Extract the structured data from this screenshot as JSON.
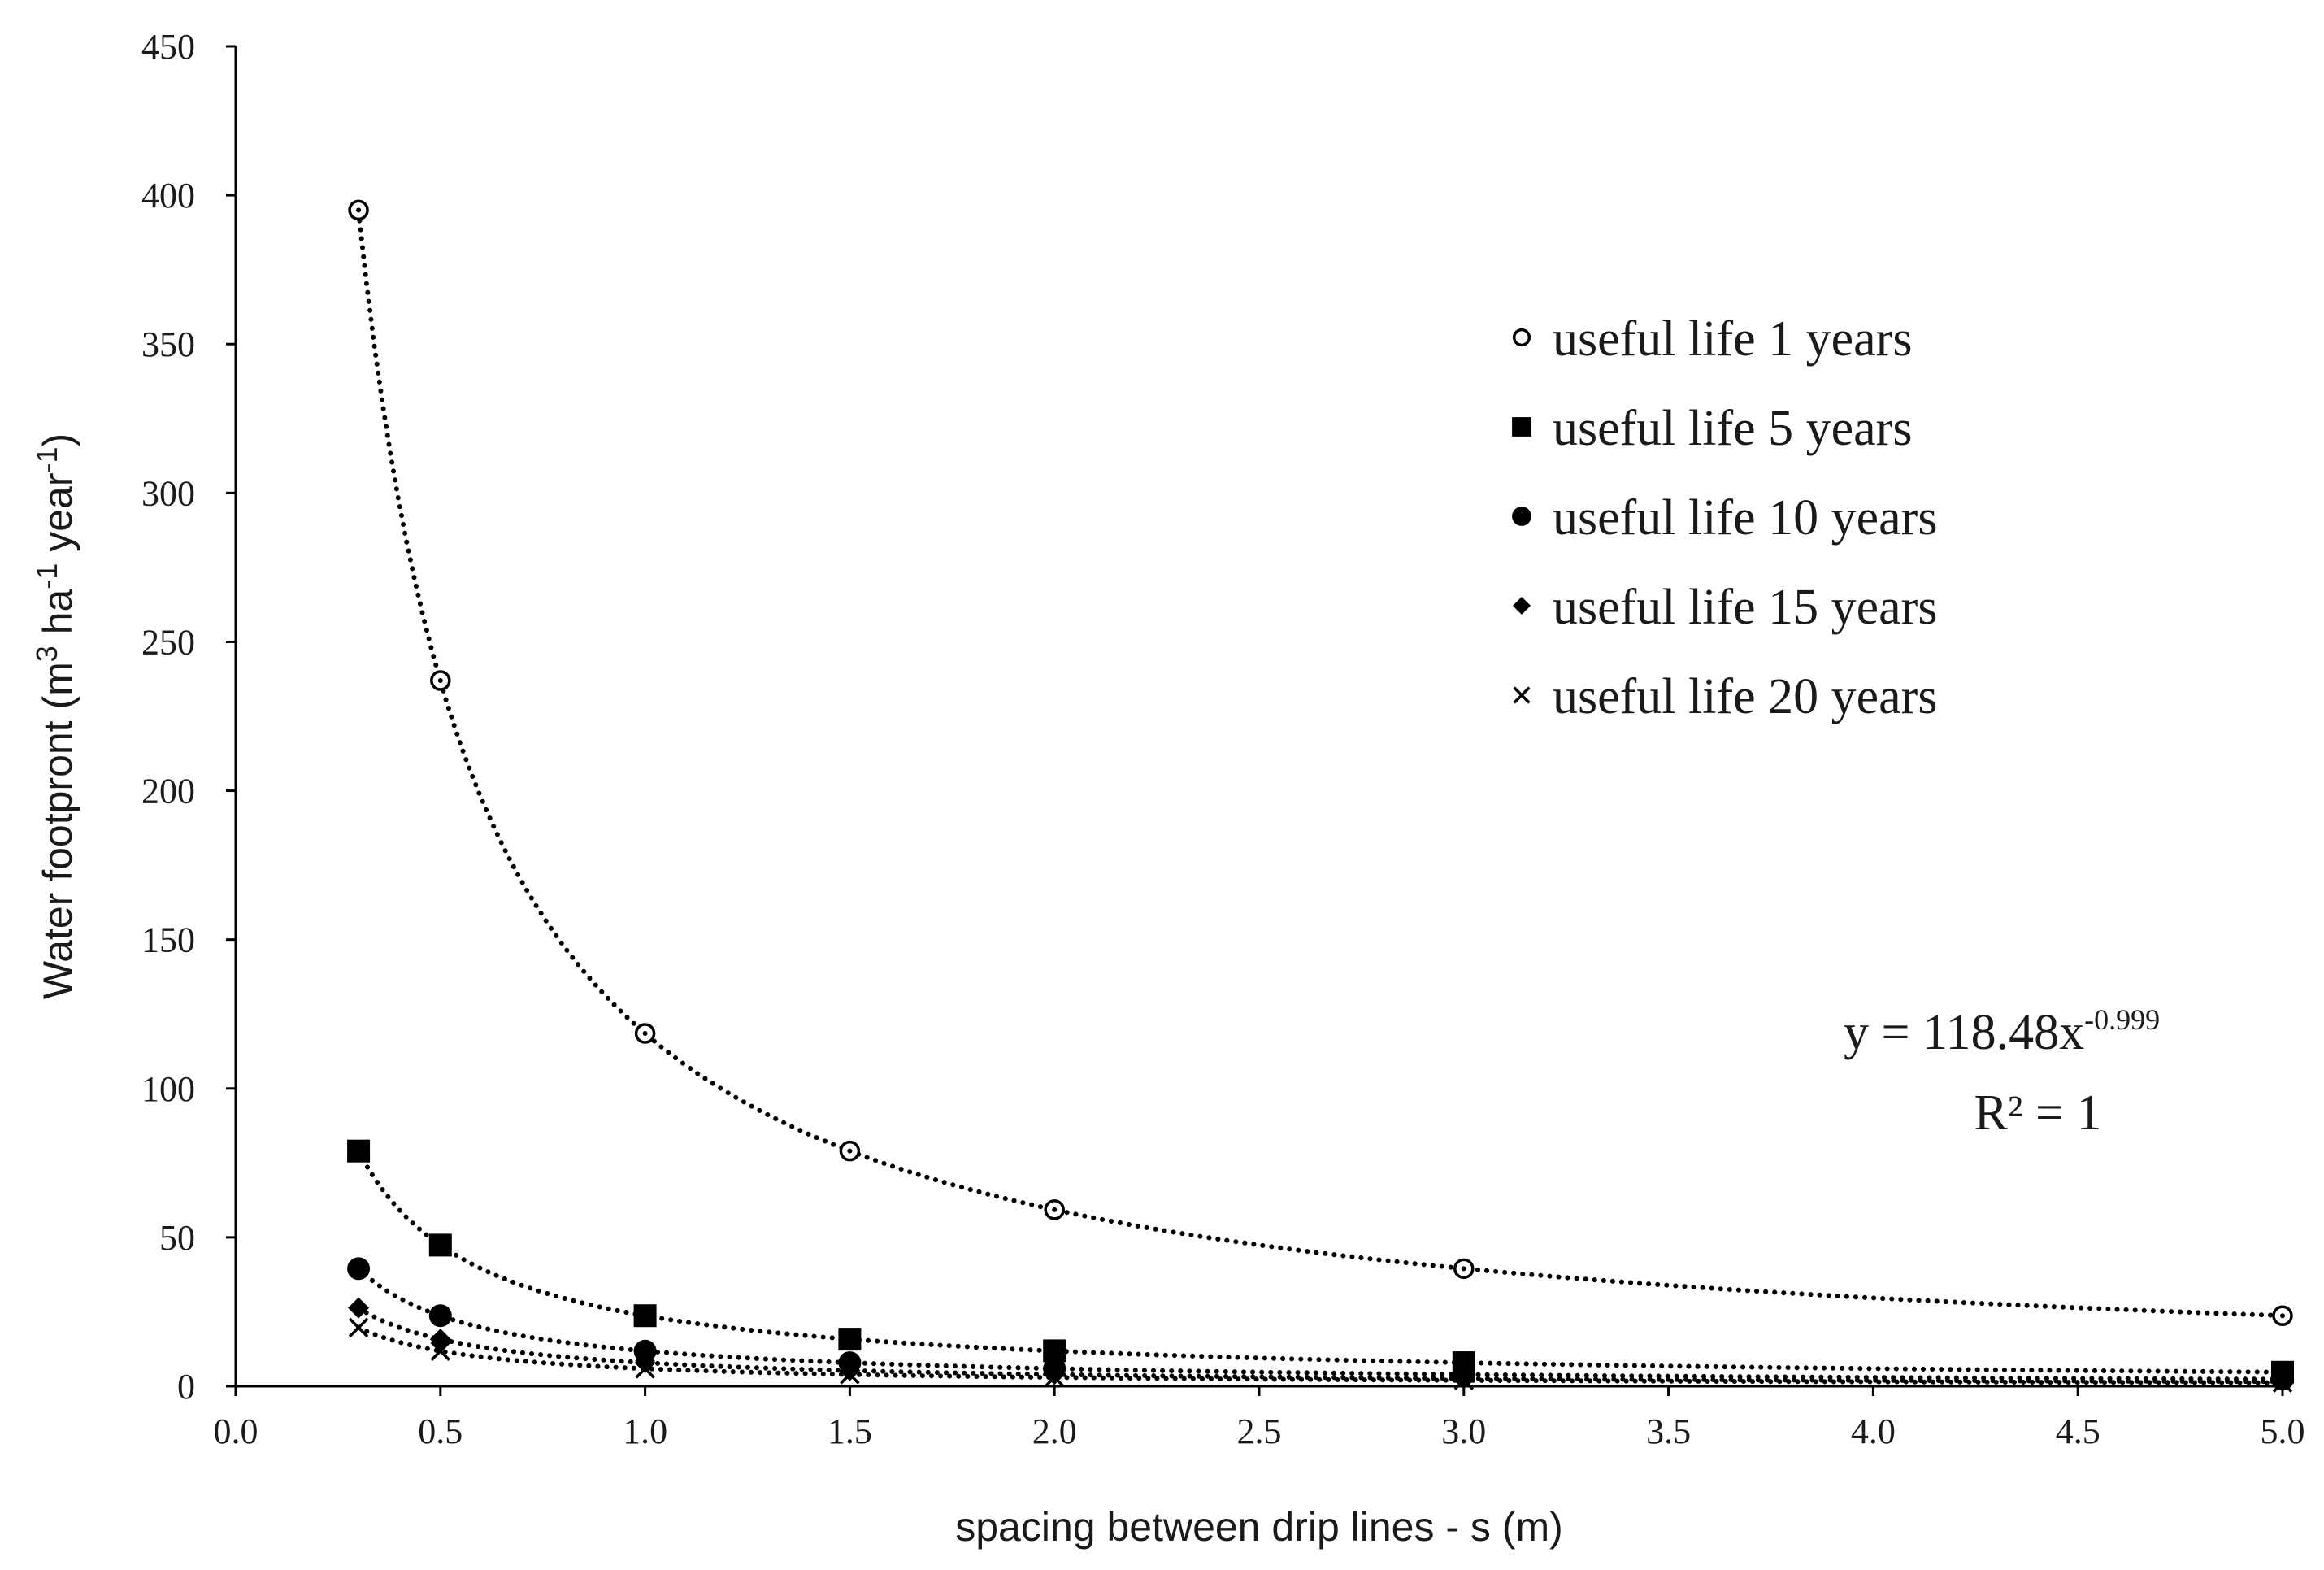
{
  "chart_data": {
    "type": "scatter",
    "xlabel": "spacing between drip lines - s (m)",
    "ylabel_parts": [
      "Water footpront (m",
      "3",
      " ha",
      "-1",
      " year",
      "-1",
      ")"
    ],
    "xlim": [
      0,
      5
    ],
    "ylim": [
      0,
      450
    ],
    "xticks": [
      "0.0",
      "0.5",
      "1.0",
      "1.5",
      "2.0",
      "2.5",
      "3.0",
      "3.5",
      "4.0",
      "4.5",
      "5.0"
    ],
    "yticks": [
      "0",
      "50",
      "100",
      "150",
      "200",
      "250",
      "300",
      "350",
      "400",
      "450"
    ],
    "grid": false,
    "legend_position": "top-right",
    "trendline": "power (dotted)",
    "series": [
      {
        "name": "useful life 1 years",
        "marker": "open-circle",
        "coef": 118.48,
        "exp": -0.999,
        "x": [
          0.3,
          0.5,
          1.0,
          1.5,
          2.0,
          3.0,
          5.0
        ],
        "y": [
          395,
          237,
          118.5,
          79,
          59.3,
          39.5,
          23.7
        ]
      },
      {
        "name": "useful life 5 years",
        "marker": "square",
        "coef": 23.7,
        "exp": -0.999,
        "x": [
          0.3,
          0.5,
          1.0,
          1.5,
          2.0,
          3.0,
          5.0
        ],
        "y": [
          79,
          47.4,
          23.7,
          15.8,
          11.9,
          7.9,
          4.7
        ]
      },
      {
        "name": "useful life 10 years",
        "marker": "circle",
        "coef": 11.85,
        "exp": -0.999,
        "x": [
          0.3,
          0.5,
          1.0,
          1.5,
          2.0,
          3.0,
          5.0
        ],
        "y": [
          39.5,
          23.7,
          11.8,
          7.9,
          5.9,
          4.0,
          2.4
        ]
      },
      {
        "name": "useful life 15 years",
        "marker": "diamond",
        "coef": 7.9,
        "exp": -0.999,
        "x": [
          0.3,
          0.5,
          1.0,
          1.5,
          2.0,
          3.0,
          5.0
        ],
        "y": [
          26.3,
          15.8,
          7.9,
          5.3,
          4.0,
          2.6,
          1.6
        ]
      },
      {
        "name": "useful life 20 years",
        "marker": "x",
        "coef": 5.92,
        "exp": -0.999,
        "x": [
          0.3,
          0.5,
          1.0,
          1.5,
          2.0,
          3.0,
          5.0
        ],
        "y": [
          19.7,
          11.8,
          5.9,
          4.0,
          3.0,
          2.0,
          1.2
        ]
      }
    ],
    "annotation": {
      "eq_main": "y = 118.48x",
      "eq_exp": "-0.999",
      "r2": "R² = 1"
    }
  }
}
